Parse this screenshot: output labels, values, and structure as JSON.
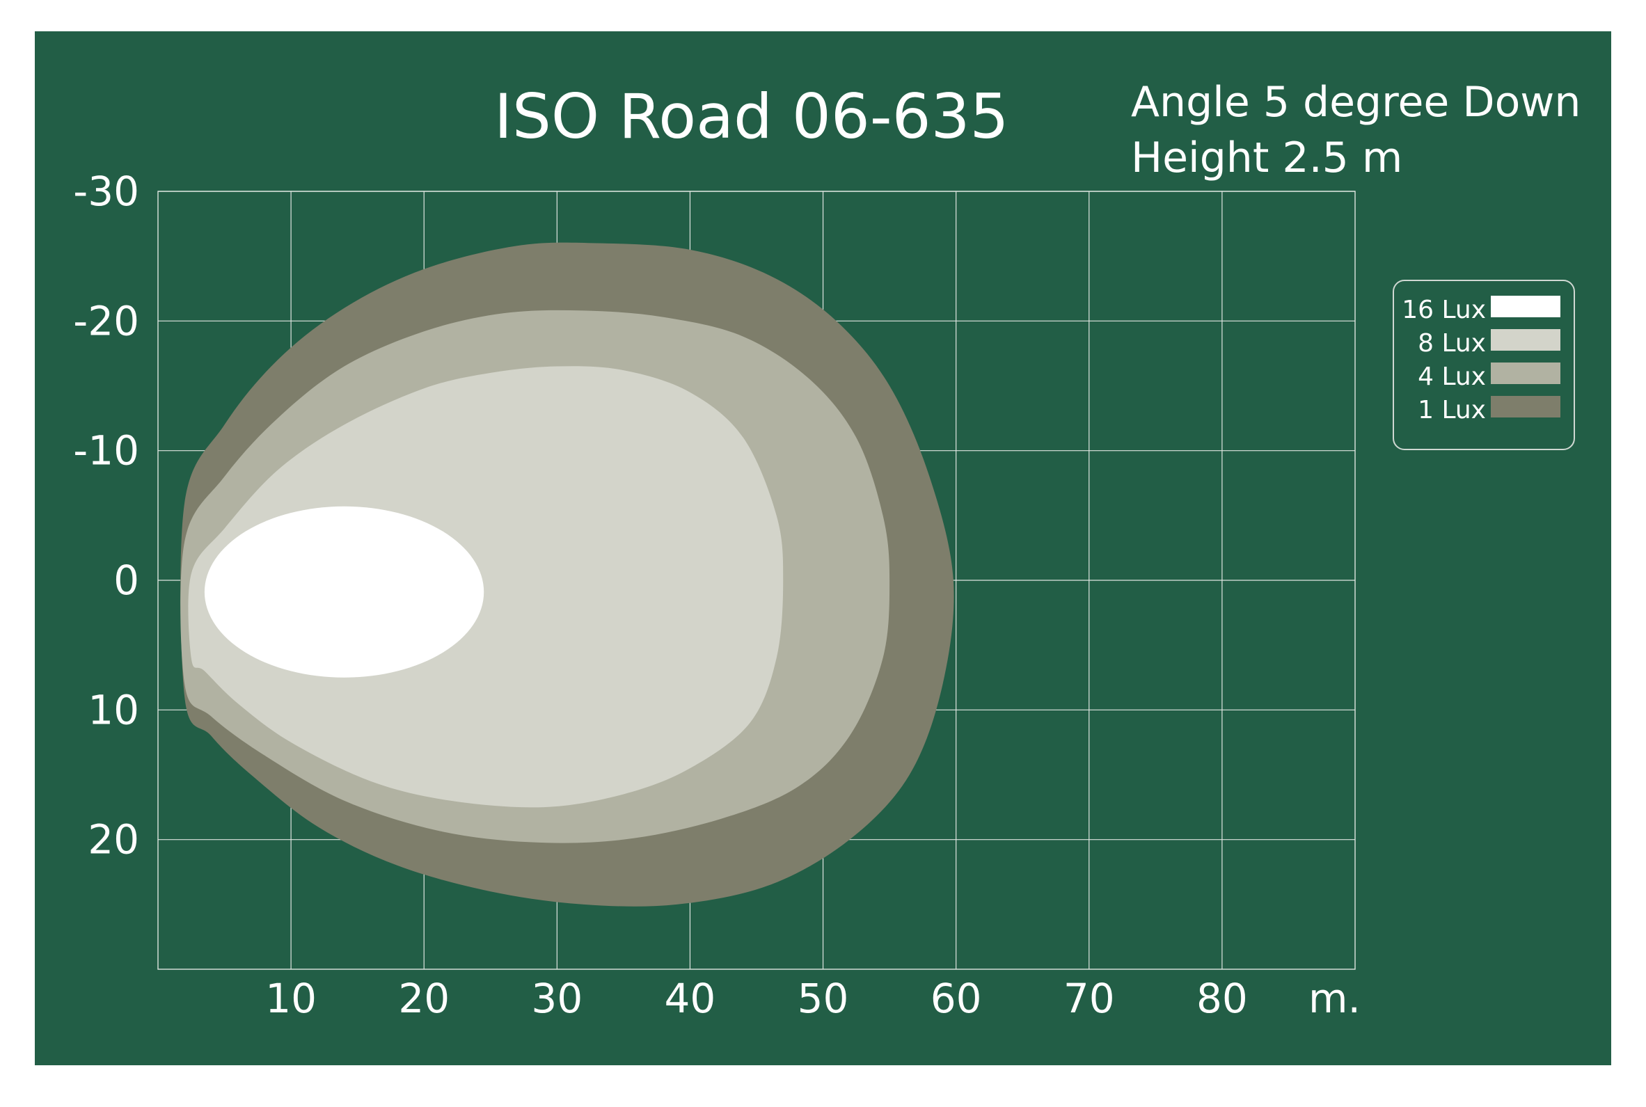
{
  "chart_data": {
    "type": "area",
    "title": "ISO Road  06-635",
    "subtitle_lines": [
      "Angle 5 degree Down",
      "Height 2.5 m"
    ],
    "x_unit_label": "m.",
    "x_ticks": [
      10,
      20,
      30,
      40,
      50,
      60,
      70,
      80
    ],
    "y_ticks": [
      -30,
      -20,
      -10,
      0,
      10,
      20
    ],
    "xlim": [
      0,
      90
    ],
    "ylim": [
      -30,
      30
    ],
    "grid": true,
    "legend_position": "right",
    "series": [
      {
        "name": "1 Lux",
        "color": "#7e7e6b",
        "extent": {
          "x_min": 2,
          "x_max": 60,
          "y_min": -26,
          "y_max": 25
        },
        "points": [
          [
            2,
            -6
          ],
          [
            5,
            -12
          ],
          [
            9,
            -17
          ],
          [
            14,
            -21
          ],
          [
            20,
            -24
          ],
          [
            27,
            -25.8
          ],
          [
            33,
            -26
          ],
          [
            40,
            -25.5
          ],
          [
            46,
            -23.5
          ],
          [
            51,
            -20
          ],
          [
            55,
            -15
          ],
          [
            58,
            -8
          ],
          [
            59.8,
            0
          ],
          [
            59,
            8
          ],
          [
            56.5,
            15
          ],
          [
            52,
            20
          ],
          [
            46,
            23.5
          ],
          [
            39,
            25
          ],
          [
            32,
            25
          ],
          [
            25,
            24
          ],
          [
            18,
            22
          ],
          [
            12,
            19
          ],
          [
            7,
            15
          ],
          [
            4,
            12
          ],
          [
            2,
            9
          ]
        ]
      },
      {
        "name": "4 Lux",
        "color": "#b1b2a2",
        "extent": {
          "x_min": 2,
          "x_max": 55,
          "y_min": -20.8,
          "y_max": 20.2
        },
        "points": [
          [
            2,
            -3
          ],
          [
            5,
            -8
          ],
          [
            9,
            -12.5
          ],
          [
            14,
            -16.5
          ],
          [
            20,
            -19.2
          ],
          [
            26,
            -20.6
          ],
          [
            32,
            -20.8
          ],
          [
            38,
            -20.3
          ],
          [
            44,
            -18.8
          ],
          [
            49,
            -15.5
          ],
          [
            52.5,
            -11
          ],
          [
            54.5,
            -5
          ],
          [
            55,
            0
          ],
          [
            54.5,
            6
          ],
          [
            52,
            12
          ],
          [
            48,
            16
          ],
          [
            42,
            18.5
          ],
          [
            35,
            20
          ],
          [
            28,
            20.2
          ],
          [
            21,
            19.3
          ],
          [
            14,
            17
          ],
          [
            8,
            13.5
          ],
          [
            4,
            10.5
          ],
          [
            2,
            8
          ]
        ]
      },
      {
        "name": "8 Lux",
        "color": "#d3d4ca",
        "extent": {
          "x_min": 2.5,
          "x_max": 47,
          "y_min": -16.5,
          "y_max": 17.5
        },
        "points": [
          [
            2.5,
            -0.5
          ],
          [
            5,
            -4
          ],
          [
            9,
            -8.5
          ],
          [
            14,
            -12
          ],
          [
            20,
            -14.8
          ],
          [
            25,
            -16
          ],
          [
            30,
            -16.5
          ],
          [
            35,
            -16.2
          ],
          [
            40,
            -14.5
          ],
          [
            44,
            -11
          ],
          [
            46.5,
            -5
          ],
          [
            47,
            0
          ],
          [
            46.5,
            6
          ],
          [
            44.5,
            11
          ],
          [
            40,
            14.5
          ],
          [
            35,
            16.5
          ],
          [
            29,
            17.5
          ],
          [
            22,
            17
          ],
          [
            16,
            15.5
          ],
          [
            10,
            12.5
          ],
          [
            6,
            9.5
          ],
          [
            3.5,
            7
          ],
          [
            2.5,
            6
          ]
        ]
      },
      {
        "name": "16 Lux",
        "color": "#ffffff",
        "extent": {
          "x_min": 3.5,
          "x_max": 24.5,
          "y_min": -5.7,
          "y_max": 7.5
        },
        "shape": "ellipse"
      }
    ]
  }
}
